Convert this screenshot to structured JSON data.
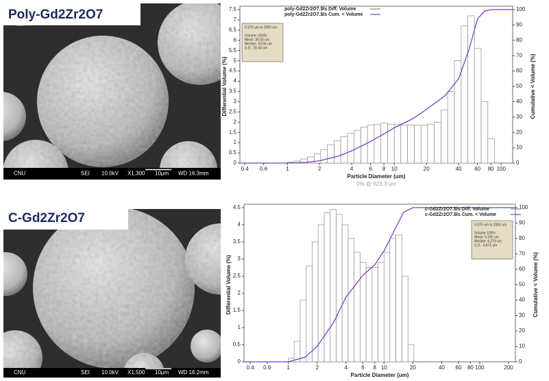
{
  "panels": [
    {
      "label": "Poly-Gd2Zr2O7",
      "sem_info": [
        "CNU",
        "SEI",
        "10.0kV",
        "X1,300",
        "10μm",
        "WD 16.3mm"
      ]
    },
    {
      "label": "C-Gd2Zr2O7",
      "sem_info": [
        "CNU",
        "SEI",
        "10.0kV",
        "X1,500",
        "10μm",
        "WD 16.2mm"
      ]
    }
  ],
  "chart_data": [
    {
      "type": "histogram",
      "x_label": "Particle Diameter (um)",
      "y_label": "Differential Volume (%)",
      "y2_label": "Cumulative < Volume (%)",
      "note": "0% @ 623.3 um",
      "stats": [
        "0.375 um to 2000 um",
        "Volume: 100%",
        "Mean: 35.02 um",
        "Median: 30.56 um",
        "S.D.: 20.44 um"
      ],
      "log_x": true,
      "xlim": [
        0.36,
        128
      ],
      "xticks": [
        0.4,
        0.6,
        1,
        2,
        4,
        6,
        8,
        10,
        20,
        40,
        60,
        80,
        100
      ],
      "ylim": [
        0,
        7.5
      ],
      "yticks": [
        0,
        0.5,
        1,
        1.5,
        2,
        2.5,
        3,
        3.5,
        4,
        4.5,
        5,
        5.5,
        6,
        6.5,
        7,
        7.5
      ],
      "y2lim": [
        0,
        100
      ],
      "y2ticks": [
        0,
        10,
        20,
        30,
        40,
        50,
        60,
        70,
        80,
        90,
        100
      ],
      "series": [
        {
          "name": "poly-Gd2Zr2O7.$ls Diff. Volume",
          "color": "#8a8a8a",
          "bins": [
            1.0,
            1.15,
            1.33,
            1.54,
            1.78,
            2.05,
            2.37,
            2.74,
            3.16,
            3.65,
            4.22,
            4.87,
            5.62,
            6.49,
            7.5,
            8.66,
            10.0,
            11.5,
            13.3,
            15.4,
            17.8,
            20.5,
            23.7,
            27.4,
            31.6,
            36.5,
            42.2,
            48.7,
            56.2,
            64.9,
            75.0,
            86.6,
            100
          ],
          "values": [
            0.05,
            0.1,
            0.2,
            0.3,
            0.45,
            0.65,
            0.9,
            1.1,
            1.3,
            1.45,
            1.6,
            1.75,
            1.85,
            1.9,
            1.95,
            1.9,
            1.9,
            1.85,
            1.85,
            1.85,
            1.85,
            1.9,
            2.0,
            2.6,
            3.5,
            5.0,
            6.7,
            7.2,
            5.6,
            3.0,
            1.2,
            0
          ]
        },
        {
          "name": "poly-Gd2Zr2O7.$ls Cum. < Volume",
          "color": "#7d3cc8",
          "axis": "y2",
          "x": [
            0.36,
            1,
            1.5,
            2,
            3,
            4,
            6,
            8,
            10,
            15,
            20,
            30,
            40,
            50,
            60,
            70,
            80,
            128
          ],
          "values": [
            0,
            0,
            0.5,
            1.5,
            4.5,
            8,
            14,
            19,
            23,
            29,
            35,
            44,
            55,
            74,
            94,
            99,
            100,
            100
          ]
        }
      ]
    },
    {
      "type": "histogram",
      "x_label": "Particle Diameter (um)",
      "y_label": "Differential Volume (%)",
      "y2_label": "Cumulative < Volume (%)",
      "stats": [
        "0.375 um to 2000 um",
        "Volume  100%",
        "Mean: 6.292 um",
        "Median: 4.279 um",
        "S.D.: 4.871 um"
      ],
      "log_x": true,
      "xlim": [
        0.344,
        236
      ],
      "xticks": [
        0.4,
        0.6,
        1,
        2,
        4,
        6,
        8,
        10,
        20,
        40,
        60,
        80,
        100,
        200
      ],
      "ylim": [
        0,
        4.5
      ],
      "yticks": [
        0,
        0.5,
        1,
        1.5,
        2,
        2.5,
        3,
        3.5,
        4,
        4.5
      ],
      "y2lim": [
        0,
        100
      ],
      "y2ticks": [
        0,
        10,
        20,
        30,
        40,
        50,
        60,
        70,
        80,
        90,
        100
      ],
      "series": [
        {
          "name": "c-Gd2Zr2O7.$ls Diff. Volume",
          "color": "#8a8a8a",
          "bins": [
            1.0,
            1.15,
            1.33,
            1.54,
            1.78,
            2.05,
            2.37,
            2.74,
            3.16,
            3.65,
            4.22,
            4.87,
            5.62,
            6.49,
            7.5,
            8.66,
            10.0,
            11.5,
            13.3,
            15.4,
            17.8,
            20.5,
            23.7
          ],
          "values": [
            0.1,
            0.6,
            1.8,
            2.8,
            3.5,
            4.0,
            4.35,
            4.45,
            4.3,
            4.0,
            3.6,
            3.2,
            2.9,
            2.75,
            2.75,
            2.9,
            3.2,
            3.6,
            3.7,
            2.5,
            0.5,
            0
          ]
        },
        {
          "name": "c-Gd2Zr2O7.$ls Cum. < Volume",
          "color": "#7d3cc8",
          "axis": "y2",
          "x": [
            0.344,
            1,
            1.5,
            2,
            3,
            4,
            6,
            8,
            10,
            13,
            16,
            20,
            236
          ],
          "values": [
            0,
            0,
            3,
            10,
            26,
            42,
            56,
            63,
            72,
            86,
            97,
            100,
            100
          ]
        }
      ]
    }
  ]
}
